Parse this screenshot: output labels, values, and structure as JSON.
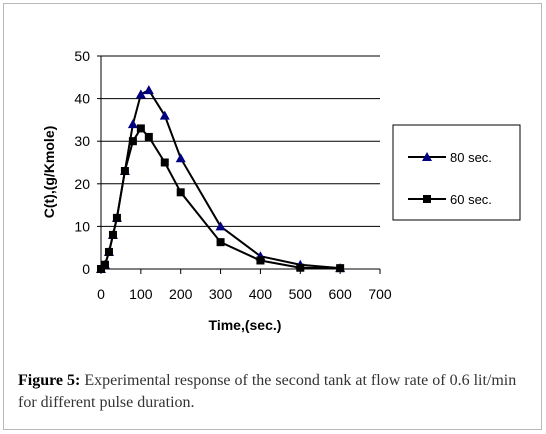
{
  "chart_data": {
    "type": "line",
    "xlabel": "Time,(sec.)",
    "ylabel": "C(t),(g/Kmole)",
    "xlim": [
      0,
      700
    ],
    "ylim": [
      0,
      50
    ],
    "xticks": [
      "0",
      "100",
      "200",
      "300",
      "400",
      "500",
      "600",
      "700"
    ],
    "yticks": [
      "0",
      "10",
      "20",
      "30",
      "40",
      "50"
    ],
    "grid": "horizontal",
    "legend_position": "right",
    "series": [
      {
        "name": "80 sec.",
        "marker": "triangle",
        "color": "#000080",
        "points": [
          [
            0,
            0
          ],
          [
            10,
            1
          ],
          [
            20,
            4
          ],
          [
            30,
            8
          ],
          [
            40,
            12
          ],
          [
            60,
            23
          ],
          [
            80,
            34
          ],
          [
            100,
            41
          ],
          [
            120,
            42
          ],
          [
            160,
            36
          ],
          [
            200,
            26
          ],
          [
            300,
            10
          ],
          [
            400,
            3
          ],
          [
            500,
            1
          ],
          [
            600,
            0.2
          ]
        ]
      },
      {
        "name": "60 sec.",
        "marker": "square",
        "color": "#000000",
        "points": [
          [
            0,
            0
          ],
          [
            10,
            1
          ],
          [
            20,
            4
          ],
          [
            30,
            8
          ],
          [
            40,
            12
          ],
          [
            60,
            23
          ],
          [
            80,
            30
          ],
          [
            100,
            33
          ],
          [
            120,
            31
          ],
          [
            160,
            25
          ],
          [
            200,
            18
          ],
          [
            300,
            6.3
          ],
          [
            400,
            2
          ],
          [
            500,
            0.3
          ],
          [
            600,
            0.2
          ]
        ]
      }
    ]
  },
  "caption": {
    "label": "Figure 5:",
    "text": " Experimental response of the second tank at flow rate of 0.6 lit/min for different pulse duration."
  }
}
